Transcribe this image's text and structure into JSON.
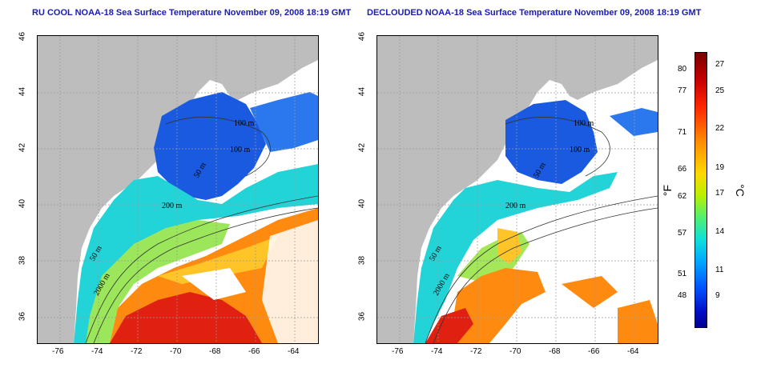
{
  "left_panel": {
    "title": "RU COOL NOAA-18 Sea Surface Temperature November 09, 2008 18:19 GMT",
    "contours": [
      "100 m",
      "100 m",
      "50 m",
      "200 m",
      "50 m",
      "2000 m"
    ]
  },
  "right_panel": {
    "title": "DECLOUDED NOAA-18 Sea Surface Temperature November 09, 2008 18:19 GMT",
    "contours": [
      "100 m",
      "100 m",
      "50 m",
      "200 m",
      "50 m",
      "2000 m"
    ]
  },
  "x_ticks": [
    "-76",
    "-74",
    "-72",
    "-70",
    "-68",
    "-66",
    "-64"
  ],
  "y_ticks": [
    "36",
    "38",
    "40",
    "42",
    "44",
    "46"
  ],
  "colorbar": {
    "fahrenheit_unit": "°F",
    "celsius_unit": "°C",
    "fahrenheit_ticks": [
      "80",
      "77",
      "71",
      "66",
      "62",
      "57",
      "51",
      "48"
    ],
    "celsius_ticks": [
      "27",
      "25",
      "22",
      "19",
      "17",
      "14",
      "11",
      "9"
    ]
  }
}
